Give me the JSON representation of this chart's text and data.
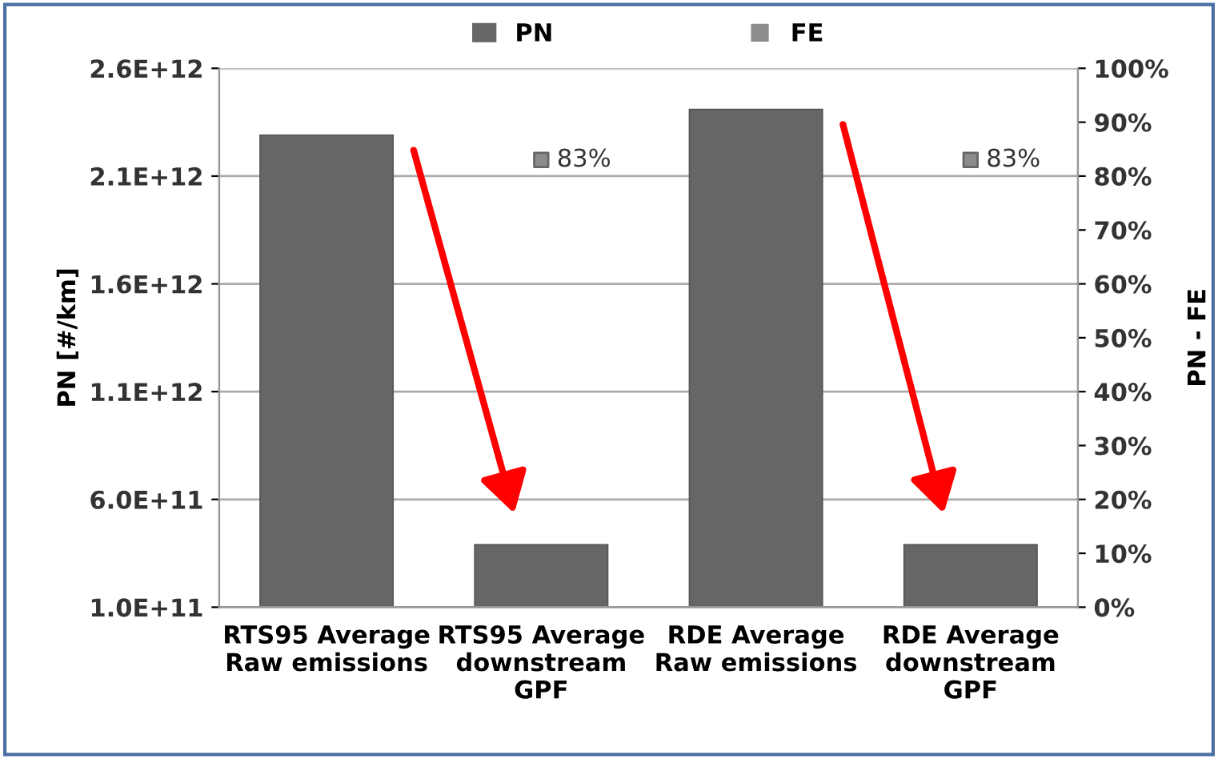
{
  "chart_data": {
    "type": "bar",
    "categories": [
      "RTS95 Average\nRaw emissions",
      "RTS95 Average\ndownstream\nGPF",
      "RDE Average\nRaw emissions",
      "RDE Average\ndownstream\nGPF"
    ],
    "series": [
      {
        "name": "PN",
        "color": "#666666",
        "values": [
          2290000000000.0,
          390000000000.0,
          2410000000000.0,
          390000000000.0
        ]
      },
      {
        "name": "FE",
        "type": "scatter",
        "axis": "y2",
        "color": "#8c8c8c",
        "marker": "square",
        "values": [
          null,
          83,
          null,
          83
        ],
        "value_labels": [
          null,
          "83%",
          null,
          "83%"
        ]
      }
    ],
    "ylabel": "PN [#/km]",
    "y2label": "PN - FE",
    "ylim": [
      100000000000.0,
      2600000000000.0
    ],
    "yticks": [
      {
        "value": 100000000000.0,
        "label": "1.0E+11"
      },
      {
        "value": 600000000000.0,
        "label": "6.0E+11"
      },
      {
        "value": 1100000000000.0,
        "label": "1.1E+12"
      },
      {
        "value": 1600000000000.0,
        "label": "1.6E+12"
      },
      {
        "value": 2100000000000.0,
        "label": "2.1E+12"
      },
      {
        "value": 2600000000000.0,
        "label": "2.6E+12"
      }
    ],
    "y2lim": [
      0,
      100
    ],
    "y2ticks": [
      {
        "value": 0,
        "label": "0%"
      },
      {
        "value": 10,
        "label": "10%"
      },
      {
        "value": 20,
        "label": "20%"
      },
      {
        "value": 30,
        "label": "30%"
      },
      {
        "value": 40,
        "label": "40%"
      },
      {
        "value": 50,
        "label": "50%"
      },
      {
        "value": 60,
        "label": "60%"
      },
      {
        "value": 70,
        "label": "70%"
      },
      {
        "value": 80,
        "label": "80%"
      },
      {
        "value": 90,
        "label": "90%"
      },
      {
        "value": 100,
        "label": "100%"
      }
    ],
    "grid": "y",
    "legend": "top"
  }
}
